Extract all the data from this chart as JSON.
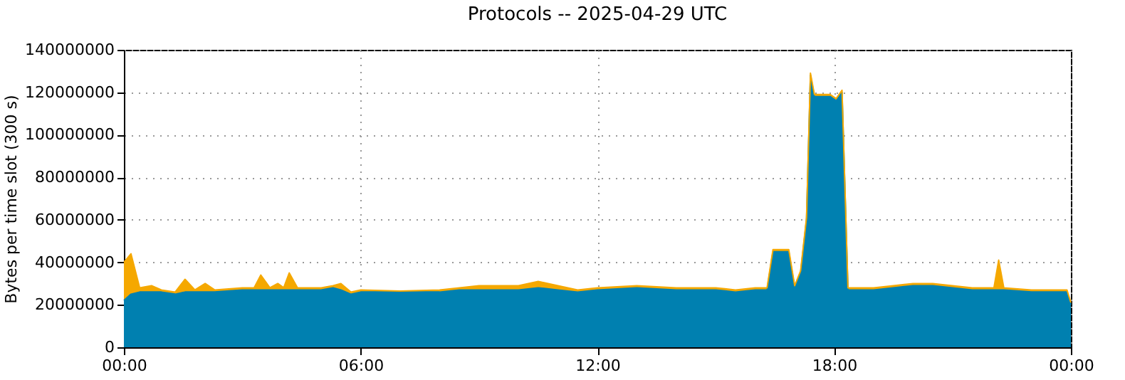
{
  "chart_data": {
    "type": "area",
    "stacked": true,
    "title": "Protocols -- 2025-04-29 UTC",
    "ylabel": "Bytes per time slot (300 s)",
    "x": [
      0,
      0.18,
      0.4,
      0.7,
      0.95,
      1.3,
      1.55,
      1.8,
      2.06,
      2.3,
      3.0,
      3.3,
      3.47,
      3.7,
      3.9,
      4.05,
      4.19,
      4.4,
      5.0,
      5.3,
      5.5,
      5.75,
      6.0,
      7.0,
      8.0,
      8.5,
      9.0,
      9.5,
      10.0,
      10.5,
      11.0,
      11.5,
      12.0,
      13.0,
      14.0,
      15.0,
      15.5,
      16.0,
      16.3,
      16.45,
      16.85,
      17.0,
      17.15,
      17.3,
      17.4,
      17.5,
      17.9,
      18.05,
      18.2,
      18.35,
      19.0,
      19.5,
      20.0,
      20.5,
      21.0,
      21.5,
      22.05,
      22.17,
      22.3,
      23.0,
      23.5,
      23.9,
      24
    ],
    "series": [
      {
        "color": "#0080b0",
        "values": [
          22000000,
          25000000,
          26000000,
          26000000,
          26000000,
          25000000,
          26000000,
          26000000,
          26000000,
          26000000,
          27000000,
          27000000,
          27000000,
          27000000,
          27000000,
          27000000,
          27000000,
          27000000,
          27000000,
          28000000,
          27000000,
          25000000,
          26000000,
          26000000,
          26000000,
          27000000,
          27000000,
          27000000,
          27000000,
          28000000,
          27000000,
          26000000,
          27000000,
          28000000,
          27000000,
          27000000,
          26000000,
          27000000,
          27000000,
          45000000,
          45000000,
          28000000,
          35000000,
          60000000,
          128000000,
          118000000,
          118000000,
          116000000,
          120000000,
          27000000,
          27000000,
          28000000,
          29000000,
          29000000,
          28000000,
          27000000,
          27000000,
          27000000,
          27000000,
          26000000,
          26000000,
          26000000,
          20000000
        ]
      },
      {
        "color": "#f5a800",
        "values": [
          18000000,
          19000000,
          2000000,
          3000000,
          1000000,
          1000000,
          6000000,
          1000000,
          4000000,
          1000000,
          1000000,
          1000000,
          7000000,
          1000000,
          3000000,
          1000000,
          8000000,
          1000000,
          1000000,
          1000000,
          3000000,
          1000000,
          1000000,
          500000,
          1000000,
          1000000,
          2000000,
          2000000,
          2000000,
          3000000,
          2000000,
          1000000,
          1000000,
          1000000,
          1000000,
          1000000,
          1000000,
          1000000,
          1000000,
          1000000,
          1000000,
          1000000,
          1000000,
          1000000,
          1000000,
          1000000,
          1000000,
          1000000,
          1000000,
          1000000,
          1000000,
          1000000,
          1000000,
          1000000,
          1000000,
          1000000,
          1000000,
          14000000,
          1000000,
          1000000,
          1000000,
          1000000,
          1000000
        ]
      }
    ],
    "xlim": [
      0,
      24
    ],
    "xticks": [
      {
        "value": 0,
        "label": "00:00"
      },
      {
        "value": 6,
        "label": "06:00"
      },
      {
        "value": 12,
        "label": "12:00"
      },
      {
        "value": 18,
        "label": "18:00"
      },
      {
        "value": 24,
        "label": "00:00"
      }
    ],
    "ylim": [
      0,
      140000000
    ],
    "yticks": [
      0,
      20000000,
      40000000,
      60000000,
      80000000,
      100000000,
      120000000,
      140000000
    ],
    "grid": true,
    "legend": false
  }
}
